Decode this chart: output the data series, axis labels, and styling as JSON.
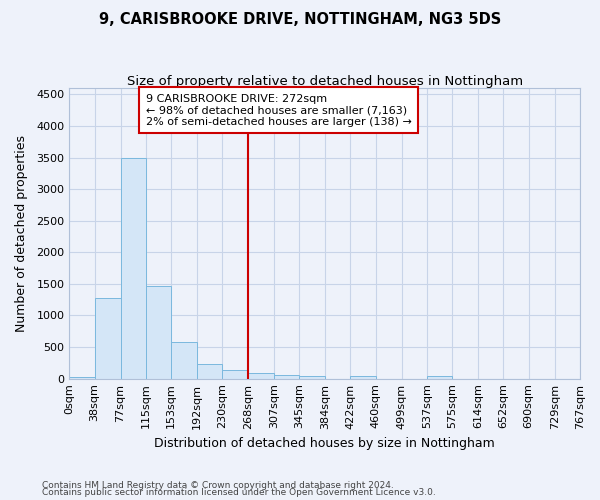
{
  "title1": "9, CARISBROOKE DRIVE, NOTTINGHAM, NG3 5DS",
  "title2": "Size of property relative to detached houses in Nottingham",
  "xlabel": "Distribution of detached houses by size in Nottingham",
  "ylabel": "Number of detached properties",
  "annotation_title": "9 CARISBROOKE DRIVE: 272sqm",
  "annotation_line1": "← 98% of detached houses are smaller (7,163)",
  "annotation_line2": "2% of semi-detached houses are larger (138) →",
  "footer1": "Contains HM Land Registry data © Crown copyright and database right 2024.",
  "footer2": "Contains public sector information licensed under the Open Government Licence v3.0.",
  "bar_edges": [
    0,
    38,
    77,
    115,
    153,
    192,
    230,
    268,
    307,
    345,
    384,
    422,
    460,
    499,
    537,
    575,
    614,
    652,
    690,
    729,
    767
  ],
  "bar_heights": [
    30,
    1270,
    3500,
    1470,
    580,
    240,
    140,
    90,
    65,
    50,
    0,
    40,
    0,
    0,
    35,
    0,
    0,
    0,
    0,
    0
  ],
  "bar_color": "#d4e6f7",
  "bar_edge_color": "#7ab8de",
  "vline_x": 268,
  "vline_color": "#cc0000",
  "annotation_box_color": "#cc0000",
  "grid_color": "#c8d4e8",
  "background_color": "#eef2fa",
  "ylim": [
    0,
    4600
  ],
  "yticks": [
    0,
    500,
    1000,
    1500,
    2000,
    2500,
    3000,
    3500,
    4000,
    4500
  ],
  "title1_fontsize": 10.5,
  "title2_fontsize": 9.5,
  "tick_fontsize": 8,
  "label_fontsize": 9,
  "footer_fontsize": 6.5
}
